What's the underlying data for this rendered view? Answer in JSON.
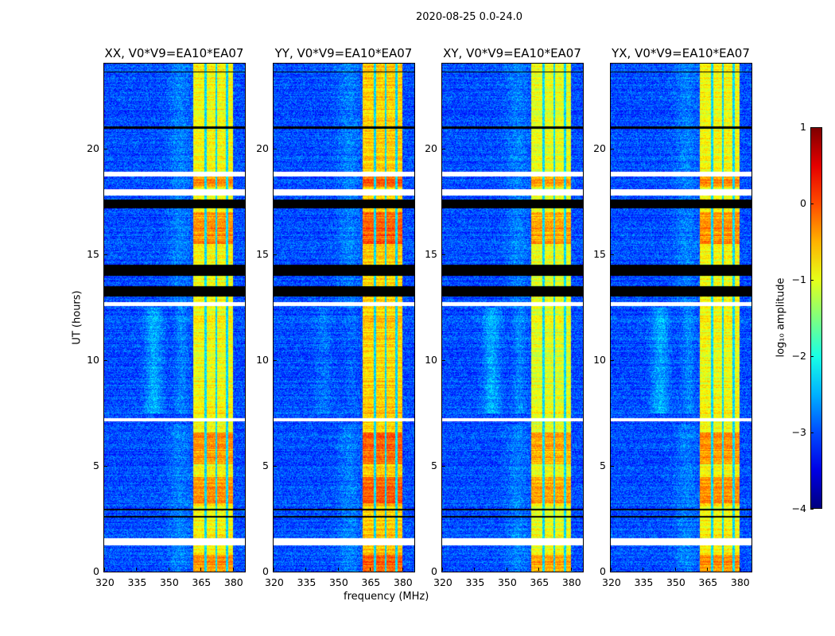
{
  "suptitle": "2020-08-25 0.0-24.0",
  "chart_data": {
    "type": "heatmap",
    "xlabel": "frequency (MHz)",
    "ylabel": "UT (hours)",
    "xlim": [
      320,
      385.6
    ],
    "ylim": [
      0,
      24
    ],
    "xticks": [
      "320",
      "335",
      "350",
      "365",
      "380"
    ],
    "xtick_values": [
      320,
      335,
      350,
      365,
      380
    ],
    "yticks": [
      "0",
      "5",
      "10",
      "15",
      "20"
    ],
    "ytick_values": [
      0,
      5,
      10,
      15,
      20
    ],
    "panels": [
      {
        "title": "XX, V0*V9=EA10*EA07",
        "hump": 1.0,
        "bandboost": 0.0
      },
      {
        "title": "YY, V0*V9=EA10*EA07",
        "hump": 0.4,
        "bandboost": 0.25
      },
      {
        "title": "XY, V0*V9=EA10*EA07",
        "hump": 1.0,
        "bandboost": -0.1
      },
      {
        "title": "YX, V0*V9=EA10*EA07",
        "hump": 1.0,
        "bandboost": 0.0
      }
    ],
    "bright_band_mhz": [
      361.5,
      380
    ],
    "band_notches_mhz": [
      367,
      372,
      377
    ],
    "hot_hours": [
      [
        0.0,
        0.8
      ],
      [
        3.2,
        4.5
      ],
      [
        5.1,
        6.6
      ],
      [
        18.2,
        18.8
      ],
      [
        15.5,
        17.0
      ]
    ],
    "flagged_white_hours": [
      [
        1.24,
        1.6
      ],
      [
        7.1,
        7.25
      ],
      [
        12.55,
        12.75
      ],
      [
        17.8,
        18.1
      ],
      [
        18.7,
        18.9
      ]
    ],
    "flagged_black_hours": [
      [
        2.58,
        2.66
      ],
      [
        2.92,
        2.98
      ],
      [
        13.0,
        13.5
      ],
      [
        14.0,
        14.5
      ],
      [
        17.2,
        17.6
      ],
      [
        20.95,
        21.05
      ],
      [
        23.6,
        23.65
      ]
    ],
    "colorbar": {
      "label": "log₁₀ amplitude",
      "colormap": "jet",
      "range": [
        -4,
        1
      ],
      "ticks": [
        "1",
        "0",
        "−1",
        "−2",
        "−3",
        "−4"
      ],
      "tick_values": [
        1,
        0,
        -1,
        -2,
        -3,
        -4
      ]
    }
  }
}
